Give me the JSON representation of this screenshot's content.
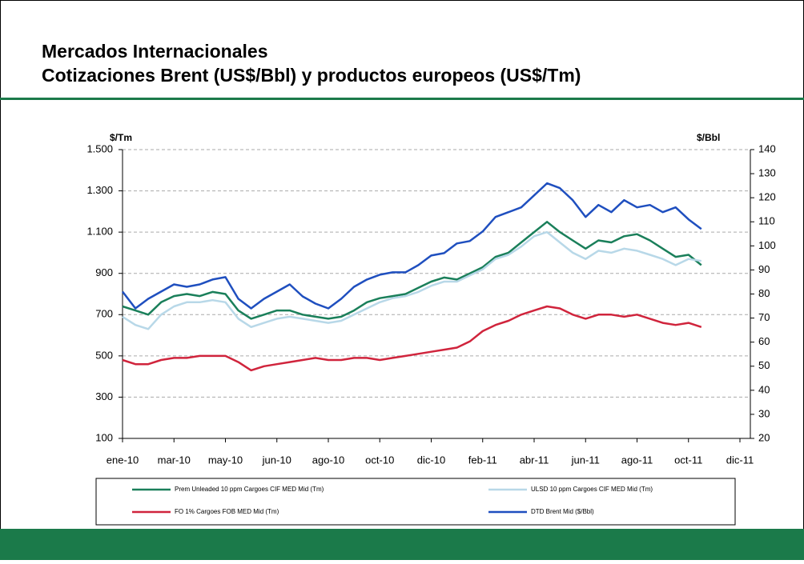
{
  "slide": {
    "title_lines": [
      "Mercados Internacionales",
      "Cotizaciones Brent (US$/Bbl) y productos europeos (US$/Tm)"
    ]
  },
  "chart_data": {
    "type": "line",
    "ylabel": "$/Tm",
    "y2label": "$/Bbl",
    "categories": [
      "ene-10",
      null,
      null,
      null,
      "mar-10",
      null,
      null,
      null,
      "may-10",
      null,
      null,
      null,
      "jun-10",
      null,
      null,
      null,
      "ago-10",
      null,
      null,
      null,
      "oct-10",
      null,
      null,
      null,
      "dic-10",
      null,
      null,
      null,
      "feb-11",
      null,
      null,
      null,
      "abr-11",
      null,
      null,
      null,
      "jun-11",
      null,
      null,
      null,
      "ago-11",
      null,
      null,
      null,
      "oct-11",
      null,
      null,
      null,
      "dic-11"
    ],
    "ylim": [
      100,
      1500
    ],
    "yticks": [
      100,
      300,
      500,
      700,
      900,
      {
        "value": 1100,
        "label": "1.100"
      },
      {
        "value": 1300,
        "label": "1.300"
      },
      {
        "value": 1500,
        "label": "1.500"
      }
    ],
    "y2lim": [
      20,
      140
    ],
    "y2ticks": [
      20,
      30,
      40,
      50,
      60,
      70,
      80,
      90,
      100,
      110,
      120,
      130,
      140
    ],
    "grid": true,
    "series": [
      {
        "name": "Prem Unleaded 10 ppm Cargoes CIF MED Mid (Tm)",
        "color": "#1a7f5a",
        "values": [
          740,
          720,
          700,
          760,
          790,
          800,
          790,
          810,
          800,
          720,
          680,
          700,
          720,
          720,
          700,
          690,
          680,
          690,
          720,
          760,
          780,
          790,
          800,
          830,
          860,
          880,
          870,
          900,
          930,
          980,
          1000,
          1050,
          1100,
          1150,
          1100,
          1060,
          1020,
          1060,
          1050,
          1080,
          1090,
          1060,
          1020,
          980,
          990,
          940,
          null,
          null,
          null
        ]
      },
      {
        "name": "ULSD 10 ppm Cargoes CIF MED Mid (Tm)",
        "color": "#b8d8e8",
        "values": [
          690,
          650,
          630,
          700,
          740,
          760,
          760,
          770,
          760,
          680,
          640,
          660,
          680,
          690,
          680,
          670,
          660,
          670,
          700,
          730,
          760,
          780,
          790,
          810,
          840,
          860,
          860,
          890,
          920,
          970,
          990,
          1030,
          1080,
          1100,
          1050,
          1000,
          970,
          1010,
          1000,
          1020,
          1010,
          990,
          970,
          940,
          970,
          960,
          null,
          null,
          null
        ]
      },
      {
        "name": "FO 1% Cargoes FOB MED Mid (Tm)",
        "color": "#d0243c",
        "values": [
          480,
          460,
          460,
          480,
          490,
          490,
          500,
          500,
          500,
          470,
          430,
          450,
          460,
          470,
          480,
          490,
          480,
          480,
          490,
          490,
          480,
          490,
          500,
          510,
          520,
          530,
          540,
          570,
          620,
          650,
          670,
          700,
          720,
          740,
          730,
          700,
          680,
          700,
          700,
          690,
          700,
          680,
          660,
          650,
          660,
          640,
          null,
          null,
          null
        ]
      },
      {
        "name": "DTD Brent Mid ($/Bbl)",
        "color": "#1f4fbf",
        "axis": "y2",
        "values": [
          81,
          74,
          78,
          81,
          84,
          83,
          84,
          86,
          87,
          78,
          74,
          78,
          81,
          84,
          79,
          76,
          74,
          78,
          83,
          86,
          88,
          89,
          89,
          92,
          96,
          97,
          101,
          102,
          106,
          112,
          114,
          116,
          121,
          126,
          124,
          119,
          112,
          117,
          114,
          119,
          116,
          117,
          114,
          116,
          111,
          107,
          null,
          null,
          null
        ]
      }
    ]
  }
}
